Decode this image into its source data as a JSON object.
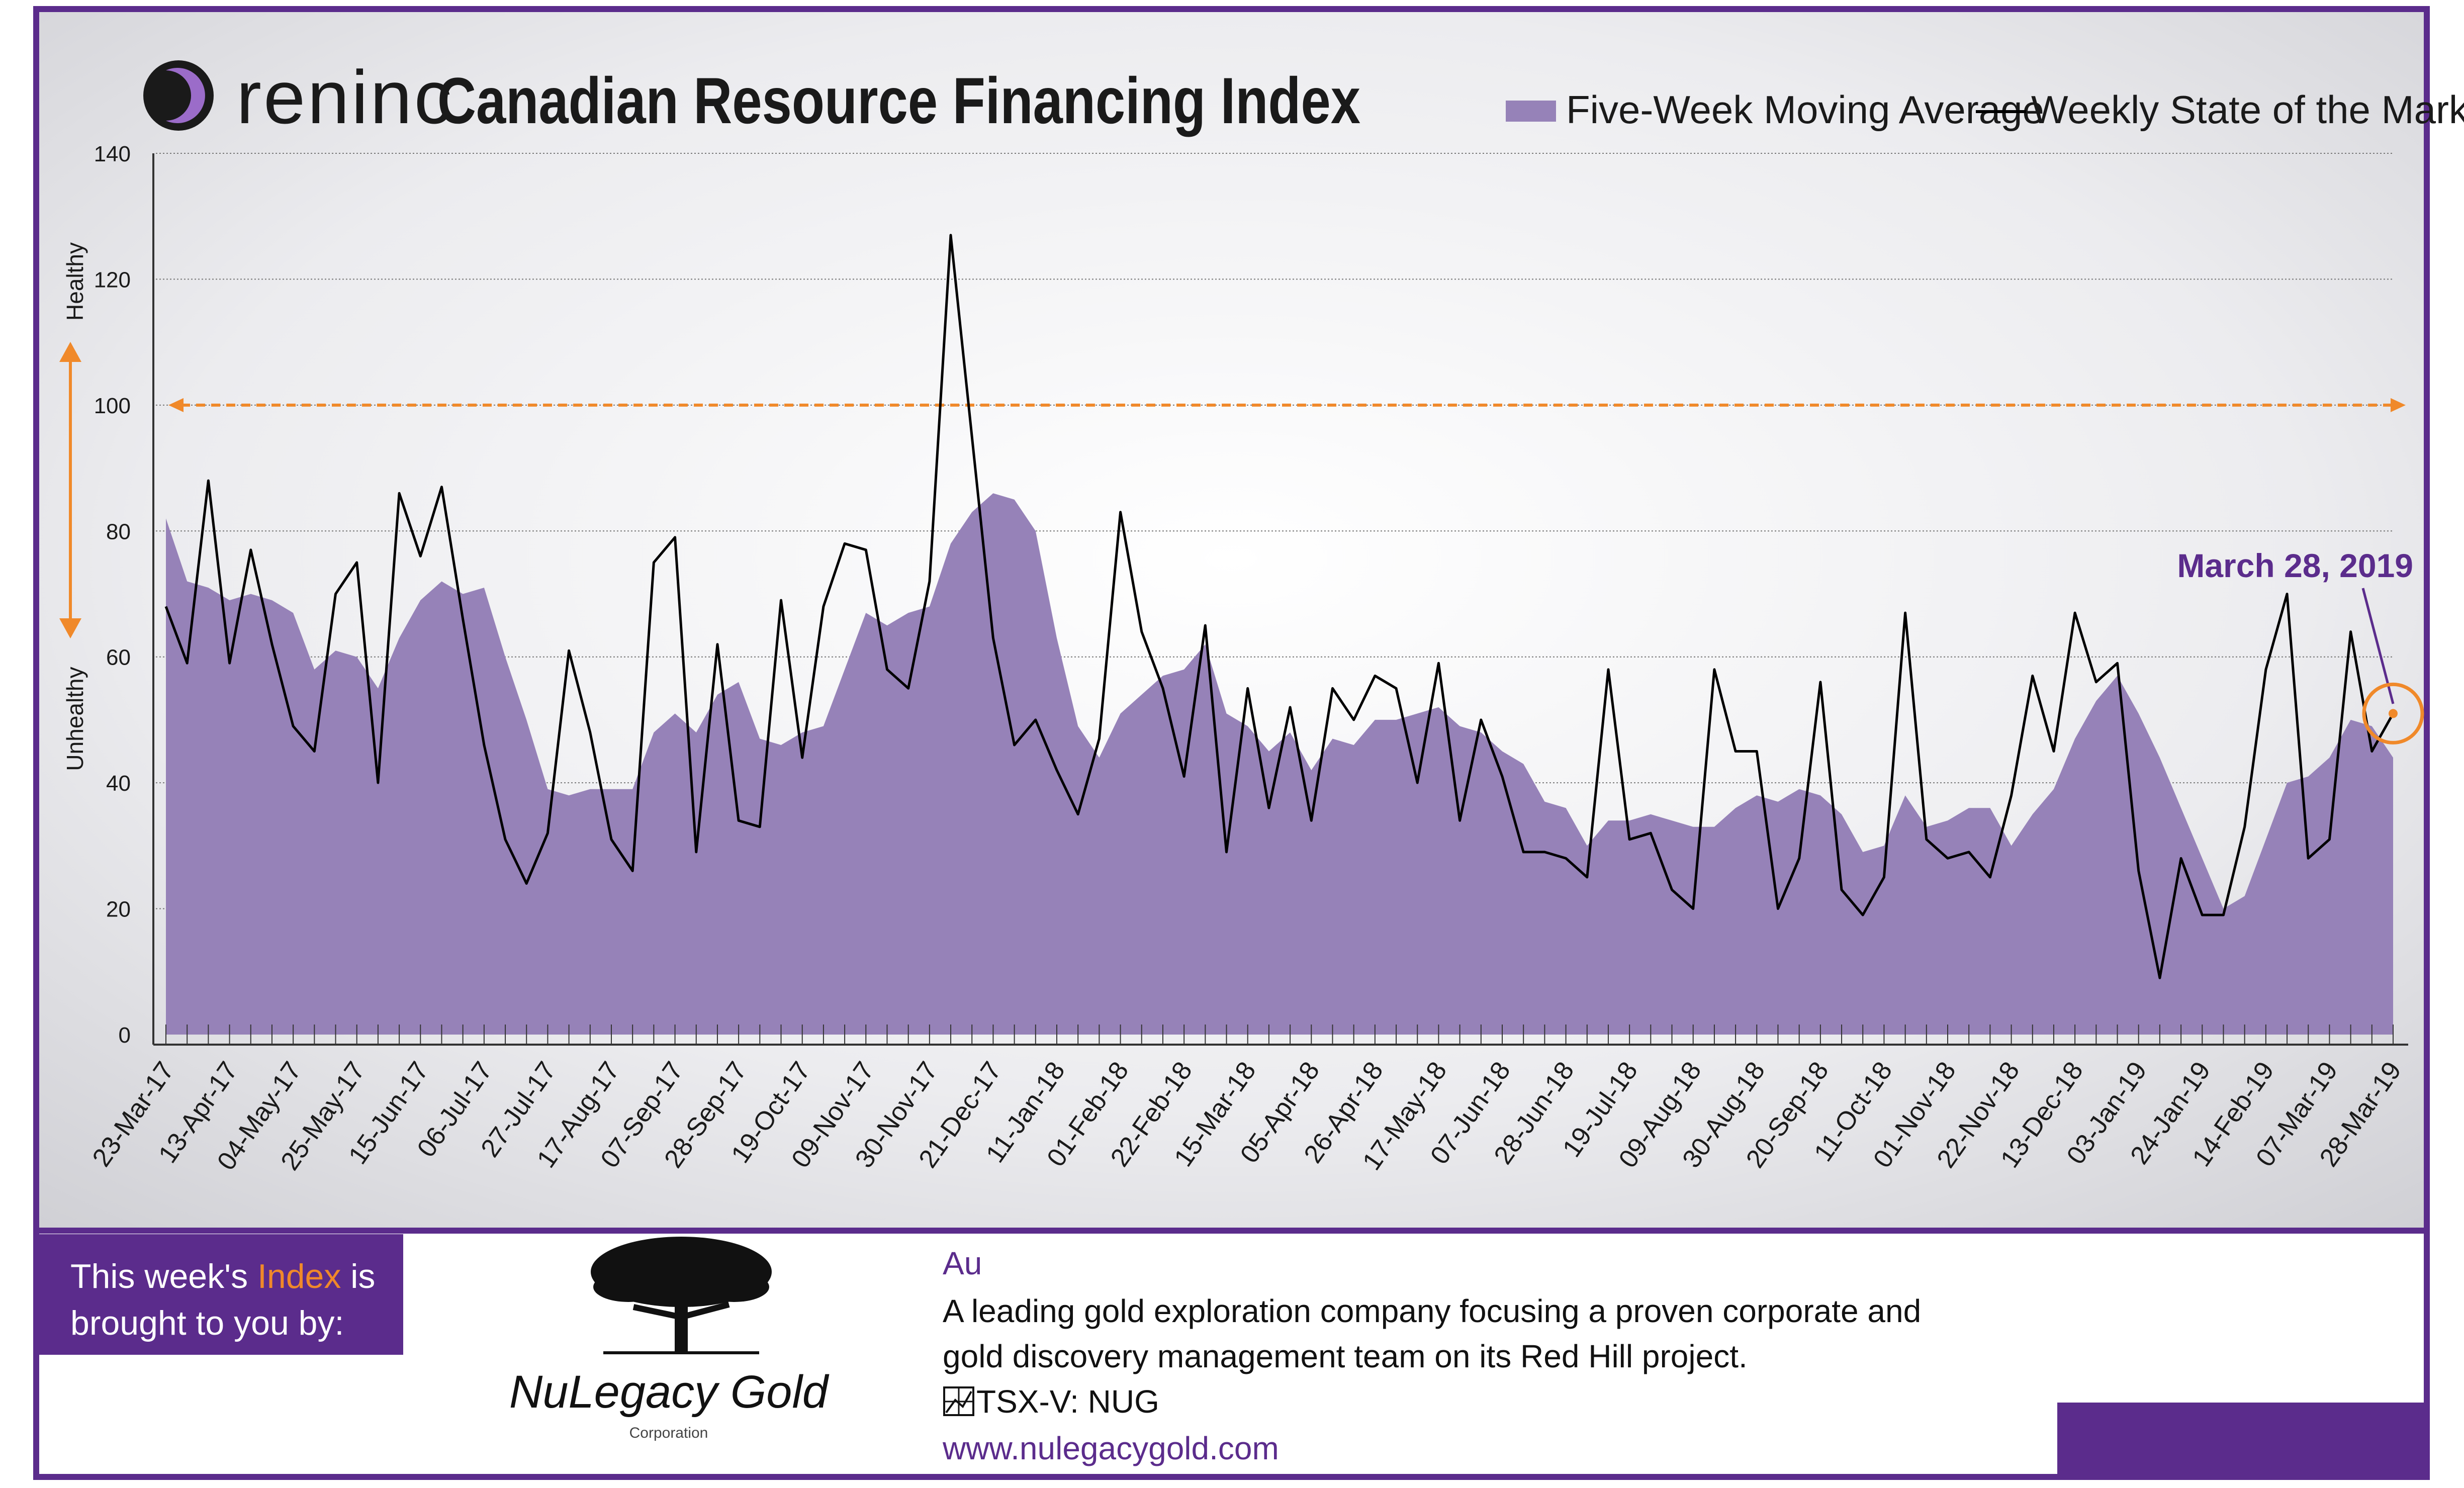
{
  "header": {
    "brand": "reninc",
    "title": "Canadian Resource Financing Index"
  },
  "legend": {
    "area_label": "Five-Week Moving Average",
    "line_label": "Weekly State of the Market"
  },
  "side_labels": {
    "top": "Healthy",
    "bottom": "Unhealthy"
  },
  "callout": {
    "label": "March 28, 2019"
  },
  "sponsor": {
    "intro_pre": "This week's ",
    "intro_highlight": "Index",
    "intro_post": " is",
    "intro_line2": "brought to you by:",
    "company_name": "NuLegacy Gold",
    "company_sub": "Corporation",
    "symbol": "Au",
    "description_line1": "A leading gold exploration company focusing a proven corporate and",
    "description_line2": "gold discovery management team on its Red Hill project.",
    "ticker": "TSX-V:  NUG",
    "website": "www.nulegacygold.com"
  },
  "colors": {
    "frame": "#5b2c8c",
    "area_fill": "#9682b8",
    "line": "#000000",
    "threshold": "#f0892a",
    "accent_text": "#5b2c8c",
    "highlight_text": "#f0892a"
  },
  "chart_data": {
    "type": "area",
    "y_axis": {
      "min": 0,
      "max": 140,
      "ticks": [
        0,
        20,
        40,
        60,
        80,
        100,
        120,
        140
      ]
    },
    "threshold_value": 100,
    "x_tick_labels": [
      "23-Mar-17",
      "13-Apr-17",
      "04-May-17",
      "25-May-17",
      "15-Jun-17",
      "06-Jul-17",
      "27-Jul-17",
      "17-Aug-17",
      "07-Sep-17",
      "28-Sep-17",
      "19-Oct-17",
      "09-Nov-17",
      "30-Nov-17",
      "21-Dec-17",
      "11-Jan-18",
      "01-Feb-18",
      "22-Feb-18",
      "15-Mar-18",
      "05-Apr-18",
      "26-Apr-18",
      "17-May-18",
      "07-Jun-18",
      "28-Jun-18",
      "19-Jul-18",
      "09-Aug-18",
      "30-Aug-18",
      "20-Sep-18",
      "11-Oct-18",
      "01-Nov-18",
      "22-Nov-18",
      "13-Dec-18",
      "03-Jan-19",
      "24-Jan-19",
      "14-Feb-19",
      "07-Mar-19",
      "28-Mar-19"
    ],
    "series": [
      {
        "name": "Five-Week Moving Average",
        "kind": "area",
        "values": [
          82,
          72,
          71,
          69,
          70,
          69,
          67,
          58,
          61,
          60,
          55,
          63,
          69,
          72,
          70,
          71,
          60,
          50,
          39,
          38,
          39,
          39,
          39,
          48,
          51,
          48,
          54,
          56,
          47,
          46,
          48,
          49,
          58,
          67,
          65,
          67,
          68,
          78,
          83,
          86,
          85,
          80,
          63,
          49,
          44,
          51,
          54,
          57,
          58,
          62,
          51,
          49,
          45,
          48,
          42,
          47,
          46,
          50,
          50,
          51,
          52,
          49,
          48,
          45,
          43,
          37,
          36,
          30,
          34,
          34,
          35,
          34,
          33,
          33,
          36,
          38,
          37,
          39,
          38,
          35,
          29,
          30,
          38,
          33,
          34,
          36,
          36,
          30,
          35,
          39,
          47,
          53,
          57,
          51,
          44,
          36,
          28,
          20,
          22,
          31,
          40,
          41,
          44,
          50,
          49,
          44
        ],
        "note": "weekly points"
      },
      {
        "name": "Weekly State of the Market",
        "kind": "line",
        "values": [
          68,
          59,
          88,
          59,
          77,
          62,
          49,
          45,
          70,
          75,
          40,
          86,
          76,
          87,
          66,
          46,
          31,
          24,
          32,
          61,
          48,
          31,
          26,
          75,
          79,
          29,
          62,
          34,
          33,
          69,
          44,
          68,
          78,
          77,
          58,
          55,
          72,
          127,
          95,
          63,
          46,
          50,
          42,
          35,
          47,
          83,
          64,
          55,
          41,
          65,
          29,
          55,
          36,
          52,
          34,
          55,
          50,
          57,
          55,
          40,
          59,
          34,
          50,
          41,
          29,
          29,
          28,
          25,
          58,
          31,
          32,
          23,
          20,
          58,
          45,
          45,
          20,
          28,
          56,
          23,
          19,
          25,
          67,
          31,
          28,
          29,
          25,
          38,
          57,
          45,
          67,
          56,
          59,
          26,
          9,
          28,
          19,
          19,
          33,
          58,
          70,
          28,
          31,
          64,
          45,
          51
        ]
      }
    ]
  }
}
